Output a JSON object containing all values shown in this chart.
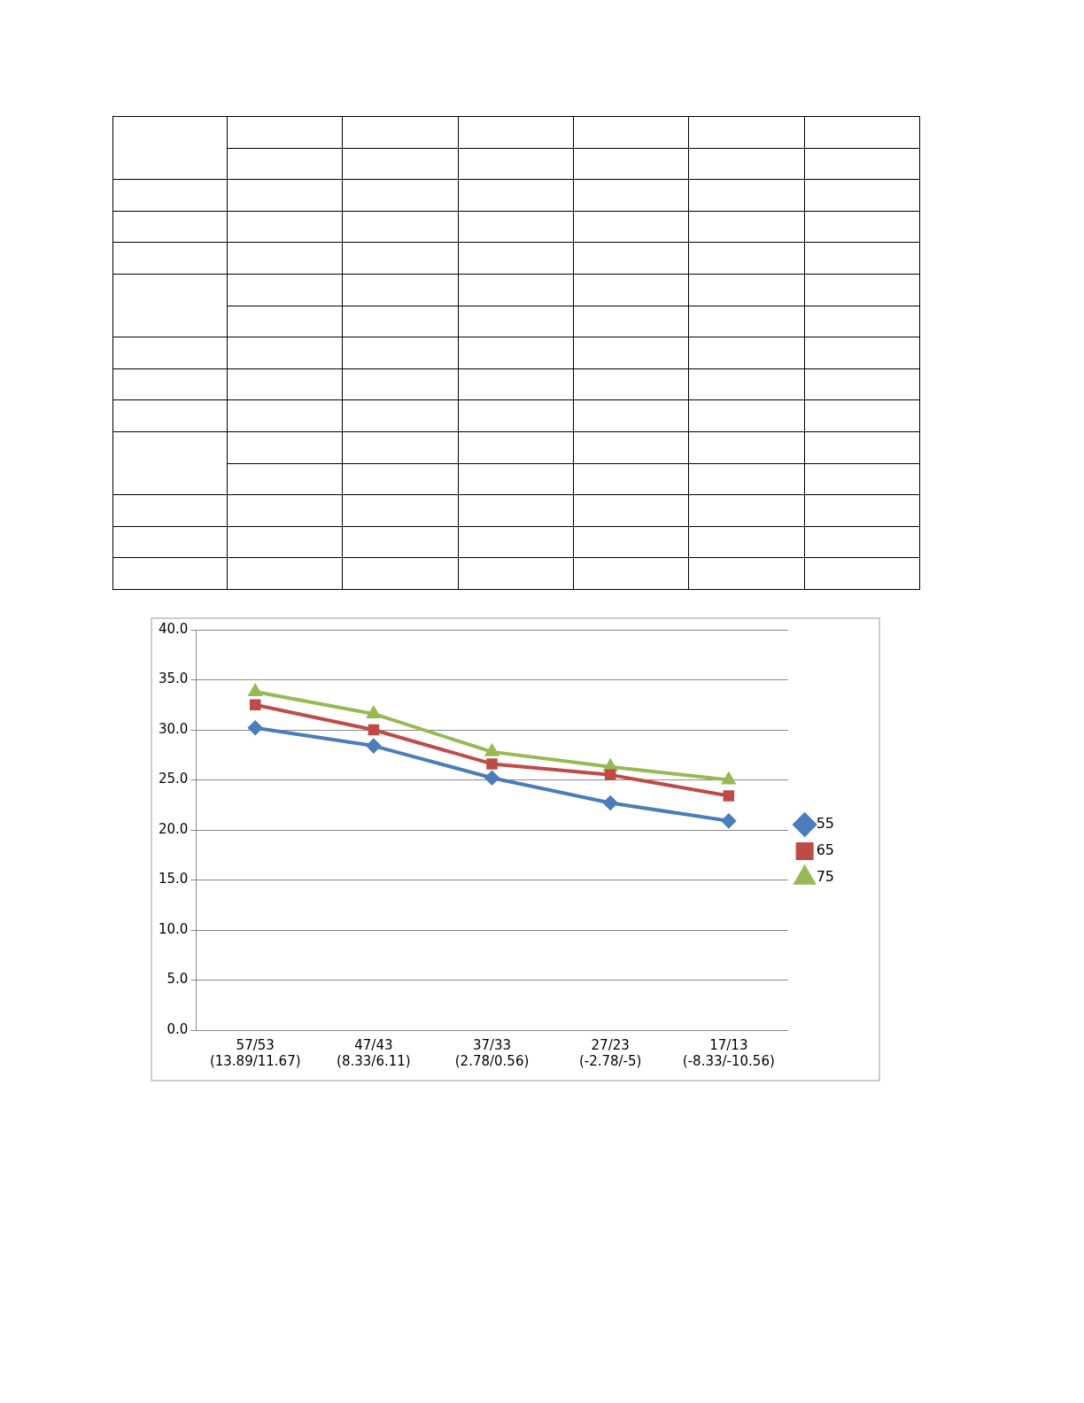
{
  "chart_data": {
    "type": "line",
    "categories": [
      "57/53\n(13.89/11.67)",
      "47/43\n(8.33/6.11)",
      "37/33\n(2.78/0.56)",
      "27/23\n(-2.78/-5)",
      "17/13\n(-8.33/-10.56)"
    ],
    "series": [
      {
        "name": "55",
        "color": "#4a7ebb",
        "marker": "diamond",
        "values": [
          30.2,
          28.4,
          25.2,
          22.7,
          20.9
        ]
      },
      {
        "name": "65",
        "color": "#be4b48",
        "marker": "square",
        "values": [
          32.5,
          30.0,
          26.6,
          25.5,
          23.4
        ]
      },
      {
        "name": "75",
        "color": "#98b954",
        "marker": "triangle",
        "values": [
          33.8,
          31.6,
          27.8,
          26.3,
          25.0
        ]
      }
    ],
    "ylim": [
      0,
      40
    ],
    "yticks": [
      {
        "value": 0,
        "label": "0.0"
      },
      {
        "value": 5,
        "label": "5.0"
      },
      {
        "value": 10,
        "label": "10.0"
      },
      {
        "value": 15,
        "label": "15.0"
      },
      {
        "value": 20,
        "label": "20.0"
      },
      {
        "value": 25,
        "label": "25.0"
      },
      {
        "value": 30,
        "label": "30.0"
      },
      {
        "value": 35,
        "label": "35.0"
      },
      {
        "value": 40,
        "label": "40.0"
      }
    ],
    "grid": "y",
    "legend": "right",
    "line_style": "solid"
  }
}
